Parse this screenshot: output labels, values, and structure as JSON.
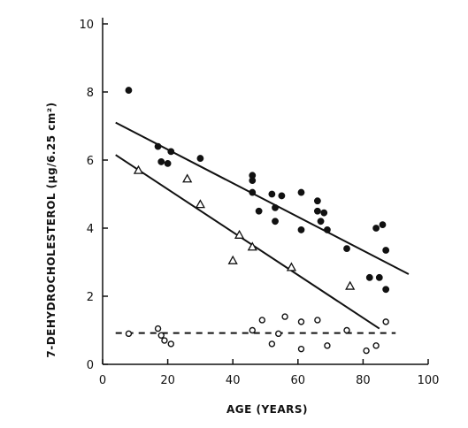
{
  "chart_data": {
    "type": "scatter",
    "xlabel": "AGE (YEARS)",
    "ylabel": "7-DEHYDROCHOLESTEROL (µg/6.25 cm²)",
    "xlim": [
      0,
      100
    ],
    "ylim": [
      0,
      10
    ],
    "x_ticks": [
      0,
      20,
      40,
      60,
      80,
      100
    ],
    "y_ticks": [
      0,
      2,
      4,
      6,
      8,
      10
    ],
    "grid": false,
    "series": [
      {
        "marker": "filled-circle",
        "points": [
          [
            8,
            8.05
          ],
          [
            17,
            6.4
          ],
          [
            18,
            5.95
          ],
          [
            20,
            5.9
          ],
          [
            21,
            6.25
          ],
          [
            30,
            6.05
          ],
          [
            46,
            5.55
          ],
          [
            46,
            5.4
          ],
          [
            46,
            5.05
          ],
          [
            48,
            4.5
          ],
          [
            52,
            5.0
          ],
          [
            53,
            4.6
          ],
          [
            53,
            4.2
          ],
          [
            55,
            4.95
          ],
          [
            61,
            5.05
          ],
          [
            61,
            3.95
          ],
          [
            66,
            4.8
          ],
          [
            66,
            4.5
          ],
          [
            67,
            4.2
          ],
          [
            68,
            4.45
          ],
          [
            69,
            3.95
          ],
          [
            75,
            3.4
          ],
          [
            82,
            2.55
          ],
          [
            84,
            4.0
          ],
          [
            85,
            2.55
          ],
          [
            86,
            4.1
          ],
          [
            87,
            3.35
          ],
          [
            87,
            2.2
          ]
        ]
      },
      {
        "marker": "open-triangle",
        "points": [
          [
            11,
            5.7
          ],
          [
            26,
            5.45
          ],
          [
            30,
            4.7
          ],
          [
            40,
            3.05
          ],
          [
            42,
            3.8
          ],
          [
            46,
            3.45
          ],
          [
            58,
            2.85
          ],
          [
            76,
            2.3
          ]
        ]
      },
      {
        "marker": "open-circle",
        "points": [
          [
            8,
            0.9
          ],
          [
            17,
            1.05
          ],
          [
            18,
            0.85
          ],
          [
            19,
            0.7
          ],
          [
            21,
            0.6
          ],
          [
            46,
            1.0
          ],
          [
            49,
            1.3
          ],
          [
            52,
            0.6
          ],
          [
            54,
            0.9
          ],
          [
            56,
            1.4
          ],
          [
            61,
            0.45
          ],
          [
            61,
            1.25
          ],
          [
            66,
            1.3
          ],
          [
            69,
            0.55
          ],
          [
            75,
            1.0
          ],
          [
            81,
            0.4
          ],
          [
            84,
            0.55
          ],
          [
            87,
            1.25
          ]
        ]
      }
    ],
    "fit_lines": [
      {
        "style": "solid",
        "from": [
          4,
          7.1
        ],
        "to": [
          94,
          2.65
        ]
      },
      {
        "style": "solid",
        "from": [
          4,
          6.15
        ],
        "to": [
          85,
          1.05
        ]
      },
      {
        "style": "dashed",
        "from": [
          4,
          0.92
        ],
        "to": [
          90,
          0.92
        ]
      }
    ]
  }
}
